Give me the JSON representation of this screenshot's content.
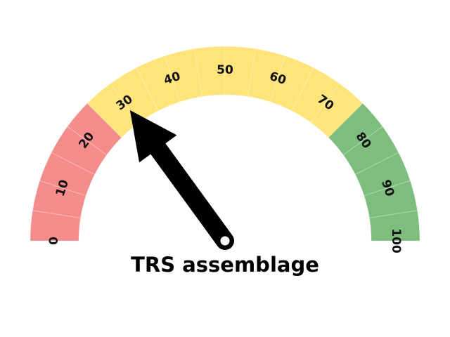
{
  "chart_data": {
    "type": "gauge",
    "title": "TRS assemblage",
    "value": 30,
    "min": 0,
    "max": 100,
    "ticks": [
      "0",
      "10",
      "20",
      "30",
      "40",
      "50",
      "60",
      "70",
      "80",
      "90",
      "100"
    ],
    "bands": [
      {
        "from": 0,
        "to": 25,
        "color": "#f48c8c"
      },
      {
        "from": 25,
        "to": 75,
        "color": "#ffe47a"
      },
      {
        "from": 75,
        "to": 100,
        "color": "#7dbd7d"
      }
    ],
    "segment_step": 5
  },
  "colors": {
    "needle": "#000000",
    "hub": "#ffffff",
    "segment_edge": "#ffffff"
  }
}
